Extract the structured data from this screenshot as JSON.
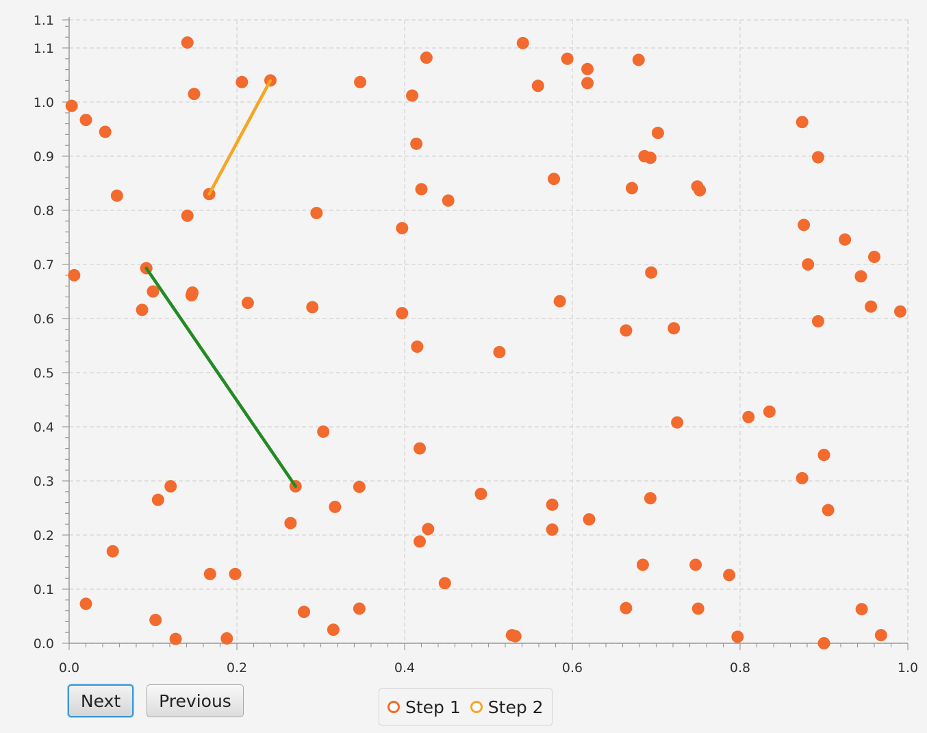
{
  "chart_data": {
    "type": "scatter",
    "title": "",
    "xlabel": "",
    "ylabel": "",
    "xlim": [
      0.0,
      1.0
    ],
    "ylim": [
      0.0,
      1.15
    ],
    "grid": true,
    "legend_position": "bottom-center",
    "x_ticks": [
      "0.0",
      "0.2",
      "0.4",
      "0.6",
      "0.8",
      "1.0"
    ],
    "y_ticks": [
      "0.0",
      "0.1",
      "0.2",
      "0.3",
      "0.4",
      "0.5",
      "0.6",
      "0.7",
      "0.8",
      "0.9",
      "1.0",
      "1.1",
      "1.1"
    ],
    "colors": {
      "points": "#f26a2e",
      "step1": "#f26a2e",
      "step2": "#f6a623",
      "orange_segment": "#f6a623",
      "green_segment": "#228b22",
      "grid": "#d9d9d9",
      "axis": "#999999"
    },
    "series": [
      {
        "name": "Step 1",
        "points": [
          [
            0.003,
            0.993
          ],
          [
            0.02,
            0.967
          ],
          [
            0.043,
            0.945
          ],
          [
            0.057,
            0.827
          ],
          [
            0.006,
            0.68
          ],
          [
            0.02,
            0.073
          ],
          [
            0.052,
            0.17
          ],
          [
            0.141,
            1.11
          ],
          [
            0.149,
            1.015
          ],
          [
            0.206,
            1.037
          ],
          [
            0.24,
            1.04
          ],
          [
            0.167,
            0.83
          ],
          [
            0.141,
            0.79
          ],
          [
            0.092,
            0.693
          ],
          [
            0.1,
            0.65
          ],
          [
            0.087,
            0.616
          ],
          [
            0.146,
            0.643
          ],
          [
            0.147,
            0.648
          ],
          [
            0.213,
            0.629
          ],
          [
            0.29,
            0.621
          ],
          [
            0.295,
            0.795
          ],
          [
            0.121,
            0.29
          ],
          [
            0.106,
            0.265
          ],
          [
            0.168,
            0.128
          ],
          [
            0.198,
            0.128
          ],
          [
            0.103,
            0.043
          ],
          [
            0.127,
            0.008
          ],
          [
            0.188,
            0.009
          ],
          [
            0.28,
            0.058
          ],
          [
            0.315,
            0.025
          ],
          [
            0.27,
            0.29
          ],
          [
            0.264,
            0.222
          ],
          [
            0.303,
            0.391
          ],
          [
            0.317,
            0.252
          ],
          [
            0.346,
            0.289
          ],
          [
            0.346,
            0.064
          ],
          [
            0.347,
            1.037
          ],
          [
            0.409,
            1.012
          ],
          [
            0.426,
            1.082
          ],
          [
            0.414,
            0.923
          ],
          [
            0.42,
            0.839
          ],
          [
            0.452,
            0.818
          ],
          [
            0.397,
            0.767
          ],
          [
            0.397,
            0.61
          ],
          [
            0.415,
            0.548
          ],
          [
            0.418,
            0.36
          ],
          [
            0.428,
            0.211
          ],
          [
            0.418,
            0.188
          ],
          [
            0.448,
            0.111
          ],
          [
            0.491,
            0.276
          ],
          [
            0.513,
            0.538
          ],
          [
            0.528,
            0.015
          ],
          [
            0.532,
            0.013
          ],
          [
            0.541,
            1.109
          ],
          [
            0.559,
            1.03
          ],
          [
            0.594,
            1.08
          ],
          [
            0.618,
            1.061
          ],
          [
            0.618,
            1.035
          ],
          [
            0.578,
            0.858
          ],
          [
            0.585,
            0.632
          ],
          [
            0.576,
            0.256
          ],
          [
            0.576,
            0.21
          ],
          [
            0.62,
            0.229
          ],
          [
            0.664,
            0.065
          ],
          [
            0.679,
            1.078
          ],
          [
            0.702,
            0.943
          ],
          [
            0.686,
            0.9
          ],
          [
            0.693,
            0.897
          ],
          [
            0.671,
            0.841
          ],
          [
            0.694,
            0.685
          ],
          [
            0.664,
            0.578
          ],
          [
            0.721,
            0.582
          ],
          [
            0.725,
            0.408
          ],
          [
            0.693,
            0.268
          ],
          [
            0.684,
            0.145
          ],
          [
            0.749,
            0.844
          ],
          [
            0.752,
            0.837
          ],
          [
            0.747,
            0.145
          ],
          [
            0.75,
            0.064
          ],
          [
            0.787,
            0.126
          ],
          [
            0.797,
            0.012
          ],
          [
            0.81,
            0.418
          ],
          [
            0.835,
            0.428
          ],
          [
            0.874,
            0.963
          ],
          [
            0.893,
            0.898
          ],
          [
            0.876,
            0.773
          ],
          [
            0.881,
            0.7
          ],
          [
            0.925,
            0.746
          ],
          [
            0.96,
            0.714
          ],
          [
            0.944,
            0.678
          ],
          [
            0.956,
            0.622
          ],
          [
            0.991,
            0.613
          ],
          [
            0.893,
            0.595
          ],
          [
            0.9,
            0.348
          ],
          [
            0.874,
            0.305
          ],
          [
            0.905,
            0.246
          ],
          [
            0.945,
            0.063
          ],
          [
            0.968,
            0.015
          ],
          [
            0.9,
            0.0
          ]
        ]
      },
      {
        "name": "Step 2",
        "points": []
      }
    ],
    "segments": [
      {
        "from": [
          0.167,
          0.83
        ],
        "to": [
          0.24,
          1.04
        ],
        "color": "orange"
      },
      {
        "from": [
          0.092,
          0.693
        ],
        "to": [
          0.27,
          0.29
        ],
        "color": "green"
      }
    ]
  },
  "controls": {
    "next_label": "Next",
    "previous_label": "Previous"
  },
  "legend": {
    "items": [
      "Step 1",
      "Step 2"
    ]
  }
}
